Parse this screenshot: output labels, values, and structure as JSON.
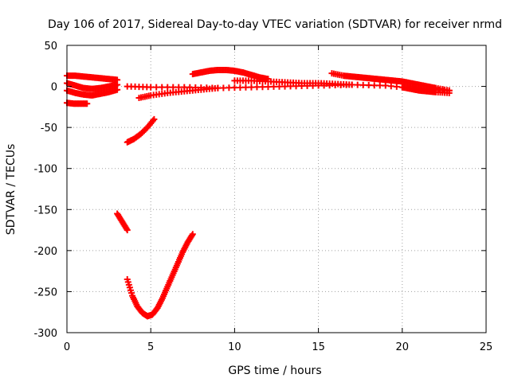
{
  "chart_data": {
    "type": "scatter",
    "title": "Day 106 of 2017, Sidereal Day-to-day VTEC variation (SDTVAR) for receiver nrmd",
    "xlabel": "GPS time / hours",
    "ylabel": "SDTVAR / TECUs",
    "xlim": [
      0,
      25
    ],
    "ylim": [
      -300,
      50
    ],
    "xticks": [
      0,
      5,
      10,
      15,
      20,
      25
    ],
    "yticks": [
      -300,
      -250,
      -200,
      -150,
      -100,
      -50,
      0,
      50
    ],
    "grid": true,
    "marker": "plus",
    "color": "#ff0000",
    "series": [
      {
        "x": [
          0.0,
          0.5,
          1.0,
          1.5,
          2.0,
          2.5,
          3.0
        ],
        "y": [
          13,
          13,
          12,
          11,
          10,
          9,
          8
        ]
      },
      {
        "x": [
          0.0,
          0.5,
          1.0,
          1.5,
          2.0,
          2.5,
          3.0
        ],
        "y": [
          4,
          1,
          -2,
          -3,
          -2,
          0,
          2
        ]
      },
      {
        "x": [
          0.0,
          0.5,
          1.0,
          1.5,
          2.0,
          2.5,
          3.0
        ],
        "y": [
          -5,
          -8,
          -10,
          -11,
          -9,
          -7,
          -4
        ]
      },
      {
        "x": [
          0.0,
          0.4,
          0.8,
          1.2
        ],
        "y": [
          -20,
          -21,
          -21,
          -21
        ]
      },
      {
        "x": [
          3.0,
          3.3,
          3.6
        ],
        "y": [
          -155,
          -165,
          -175
        ]
      },
      {
        "x": [
          3.6,
          3.9,
          4.2,
          4.5,
          4.8,
          5.1,
          5.4,
          5.7,
          6.0,
          6.3,
          6.6,
          6.9,
          7.2,
          7.5
        ],
        "y": [
          -235,
          -255,
          -268,
          -276,
          -280,
          -278,
          -270,
          -258,
          -244,
          -230,
          -216,
          -202,
          -190,
          -180
        ]
      },
      {
        "x": [
          3.6,
          4.0,
          4.4,
          4.8,
          5.2
        ],
        "y": [
          -68,
          -64,
          -58,
          -50,
          -40
        ]
      },
      {
        "x": [
          3.6,
          5.0,
          7.0,
          9.0,
          11.0,
          13.0,
          15.0,
          17.0,
          19.0,
          21.0,
          22.8
        ],
        "y": [
          0,
          -1,
          -1,
          -2,
          -1,
          0,
          1,
          2,
          1,
          -3,
          -5
        ]
      },
      {
        "x": [
          4.3,
          5.0,
          6.0,
          7.0,
          8.0,
          9.0
        ],
        "y": [
          -14,
          -11,
          -8,
          -6,
          -4,
          -2
        ]
      },
      {
        "x": [
          7.5,
          8.0,
          8.5,
          9.0,
          9.5,
          10.0,
          10.5,
          11.0,
          11.5,
          12.0
        ],
        "y": [
          15,
          17,
          19,
          20,
          20,
          19,
          17,
          14,
          11,
          9
        ]
      },
      {
        "x": [
          10.0,
          11.0,
          12.0,
          13.0,
          14.0,
          15.0,
          16.0,
          17.0
        ],
        "y": [
          7,
          7,
          6,
          5,
          4,
          4,
          3,
          2
        ]
      },
      {
        "x": [
          15.8,
          16.5,
          17.0,
          17.5,
          18.0,
          18.5,
          19.0,
          19.5,
          20.0,
          20.5,
          21.0,
          21.5,
          22.0,
          22.8
        ],
        "y": [
          16,
          13,
          12,
          11,
          10,
          9,
          8,
          7,
          6,
          4,
          2,
          0,
          -2,
          -5
        ]
      },
      {
        "x": [
          20.0,
          20.5,
          21.0,
          21.5,
          22.0,
          22.8
        ],
        "y": [
          -1,
          -3,
          -5,
          -6,
          -7,
          -8
        ]
      }
    ]
  }
}
